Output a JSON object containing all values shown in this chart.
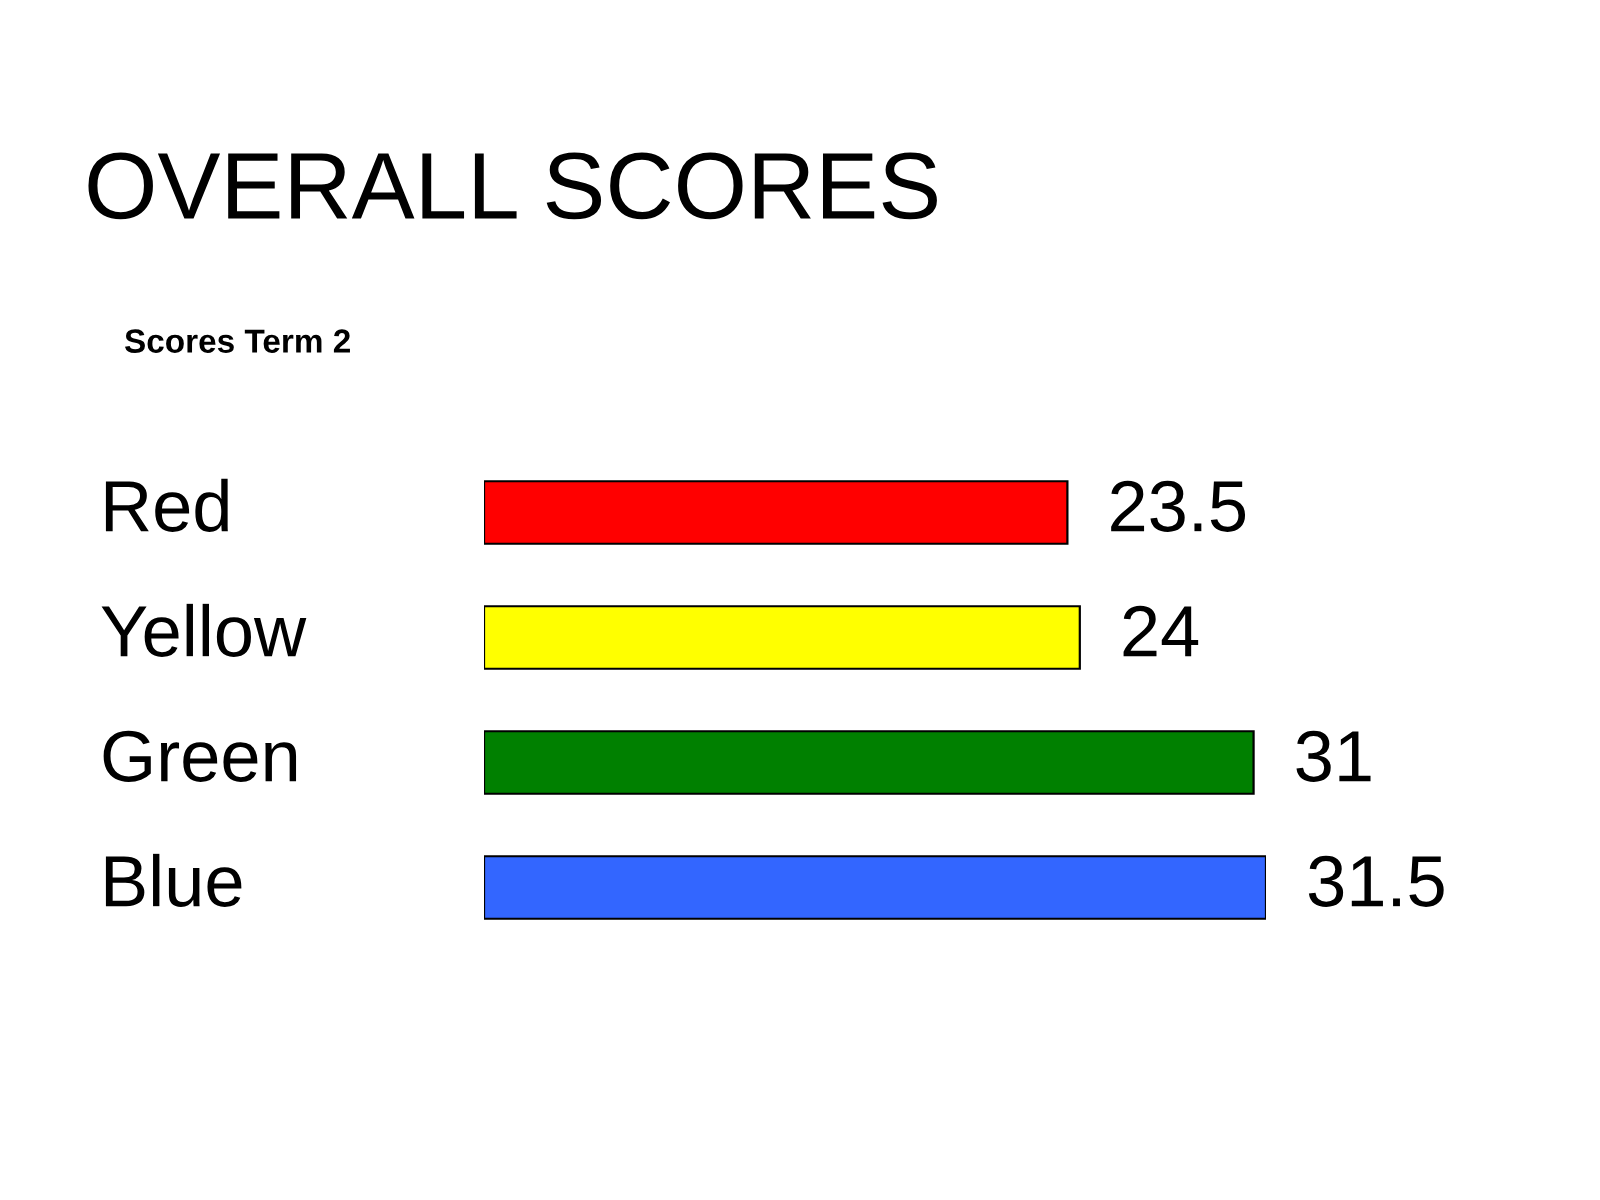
{
  "chart_data": {
    "type": "bar",
    "orientation": "horizontal",
    "title": "OVERALL SCORES",
    "subtitle": "Scores Term 2",
    "categories": [
      "Red",
      "Yellow",
      "Green",
      "Blue"
    ],
    "values": [
      23.5,
      24,
      31,
      31.5
    ],
    "colors": [
      "#ff0000",
      "#ffff00",
      "#008000",
      "#3366ff"
    ],
    "data_labels": true
  }
}
